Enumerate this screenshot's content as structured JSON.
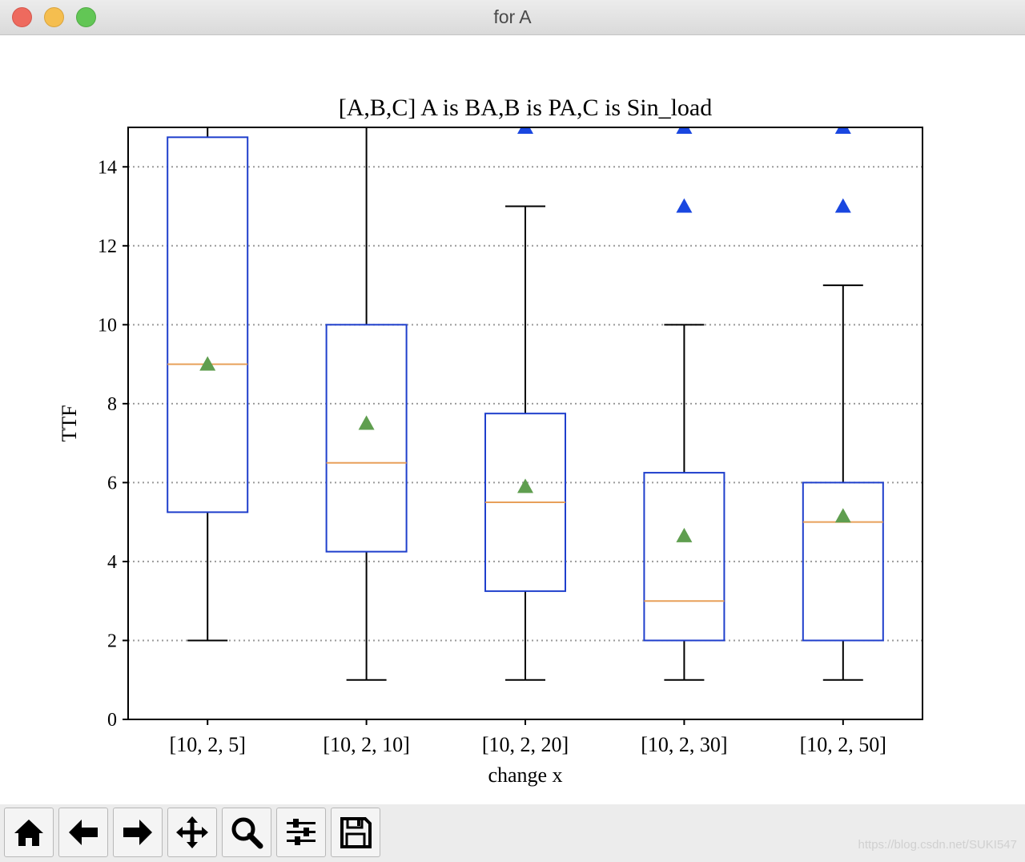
{
  "window": {
    "title": "for A"
  },
  "toolbar": {
    "buttons": [
      {
        "icon": "home-icon",
        "name": "home-button"
      },
      {
        "icon": "back-arrow-icon",
        "name": "back-button"
      },
      {
        "icon": "forward-arrow-icon",
        "name": "forward-button"
      },
      {
        "icon": "pan-move-icon",
        "name": "pan-button"
      },
      {
        "icon": "zoom-magnifier-icon",
        "name": "zoom-button"
      },
      {
        "icon": "configure-subplots-icon",
        "name": "subplots-button"
      },
      {
        "icon": "save-disk-icon",
        "name": "save-button"
      }
    ]
  },
  "watermark": "https://blog.csdn.net/SUKI547",
  "chart_data": {
    "type": "box",
    "title": "[A,B,C] A is BA,B is PA,C is Sin_load",
    "xlabel": "change x",
    "ylabel": "TTF",
    "categories": [
      "[10, 2, 5]",
      "[10, 2, 10]",
      "[10, 2, 20]",
      "[10, 2, 30]",
      "[10, 2, 50]"
    ],
    "ylim": [
      0,
      15
    ],
    "yticks": [
      0,
      2,
      4,
      6,
      8,
      10,
      12,
      14
    ],
    "grid": "y-dotted",
    "boxes": [
      {
        "whisker_low": 2,
        "q1": 5.25,
        "median": 9,
        "q3": 14.75,
        "whisker_high": 15,
        "mean": 9,
        "outliers": []
      },
      {
        "whisker_low": 1,
        "q1": 4.25,
        "median": 6.5,
        "q3": 10,
        "whisker_high": 15,
        "mean": 7.5,
        "outliers": []
      },
      {
        "whisker_low": 1,
        "q1": 3.25,
        "median": 5.5,
        "q3": 7.75,
        "whisker_high": 13,
        "mean": 5.9,
        "outliers": [
          15
        ]
      },
      {
        "whisker_low": 1,
        "q1": 2,
        "median": 3,
        "q3": 6.25,
        "whisker_high": 10,
        "mean": 4.65,
        "outliers": [
          13,
          15
        ]
      },
      {
        "whisker_low": 1,
        "q1": 2,
        "median": 5,
        "q3": 6,
        "whisker_high": 11,
        "mean": 5.15,
        "outliers": [
          13,
          15
        ]
      }
    ],
    "colors": {
      "box": "#1f3fcc",
      "median": "#e8a05a",
      "mean": "#5f9e4f",
      "outlier": "#1a47e0",
      "whisker": "#000000",
      "grid": "#9a9a9a"
    }
  }
}
